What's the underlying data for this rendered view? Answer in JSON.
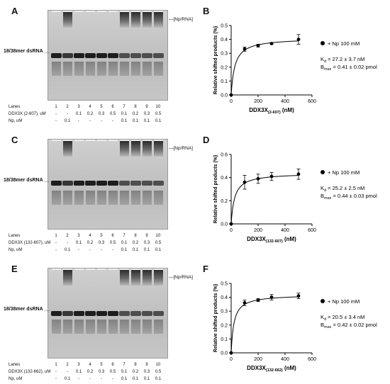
{
  "panels": [
    {
      "gel_letter": "A",
      "plot_letter": "B",
      "dsrna_label": "18/38mer dsRNA",
      "complex_label": "[Np/RNA]",
      "rows": [
        {
          "label": "Lanes",
          "values": [
            "1",
            "2",
            "3",
            "4",
            "5",
            "6",
            "7",
            "8",
            "9",
            "10"
          ]
        },
        {
          "label": "DDX3X (2-607), uM",
          "values": [
            "-",
            "-",
            "0.1",
            "0.2",
            "0.3",
            "0.5",
            "0.1",
            "0.2",
            "0.3",
            "0.5"
          ]
        },
        {
          "label": "Np, uM",
          "values": [
            "-",
            "0.1",
            "-",
            "-",
            "-",
            "-",
            "0.1",
            "0.1",
            "0.1",
            "0.1"
          ]
        }
      ],
      "legend": "+ Np 100 mM",
      "kd": "27.2 ± 3.7 nM",
      "bmax": "0.41 ± 0.02 pmol",
      "ylabel": "Relative shifted products (%)",
      "xlabel_main": "DDX3X",
      "xlabel_sub": "(2-607)",
      "xlabel_unit": " (nM)"
    },
    {
      "gel_letter": "C",
      "plot_letter": "D",
      "dsrna_label": "18/38mer dsRNA",
      "complex_label": "[Np/RNA]",
      "rows": [
        {
          "label": "Lanes",
          "values": [
            "1",
            "2",
            "3",
            "4",
            "5",
            "6",
            "7",
            "8",
            "9",
            "10"
          ]
        },
        {
          "label": "DDX3X (132-607), uM",
          "values": [
            "-",
            "-",
            "0.1",
            "0.2",
            "0.3",
            "0.5",
            "0.1",
            "0.2",
            "0.3",
            "0.5"
          ]
        },
        {
          "label": "Np, uM",
          "values": [
            "-",
            "0.1",
            "-",
            "-",
            "-",
            "-",
            "0.1",
            "0.1",
            "0.1",
            "0.1"
          ]
        }
      ],
      "legend": "+ Np 100 mM",
      "kd": "25.2 ± 2.5 nM",
      "bmax": "0.44 ± 0.03 pmol",
      "ylabel": "Relative shifted products (%)",
      "xlabel_main": "DDX3X",
      "xlabel_sub": "(132-607)",
      "xlabel_unit": " (nM)"
    },
    {
      "gel_letter": "E",
      "plot_letter": "F",
      "dsrna_label": "18/38mer dsRNA",
      "complex_label": "[Np/RNA]",
      "rows": [
        {
          "label": "Lanes",
          "values": [
            "1",
            "2",
            "3",
            "4",
            "5",
            "6",
            "7",
            "8",
            "9",
            "10"
          ]
        },
        {
          "label": "DDX3X (132-662), uM",
          "values": [
            "-",
            "-",
            "0.1",
            "0.2",
            "0.3",
            "0.5",
            "0.1",
            "0.2",
            "0.3",
            "0.5"
          ]
        },
        {
          "label": "Np, uM",
          "values": [
            "-",
            "0.1",
            "-",
            "-",
            "-",
            "-",
            "0.1",
            "0.1",
            "0.1",
            "0.1"
          ]
        }
      ],
      "legend": "+ Np 100 mM",
      "kd": "20.5 ± 3.4 nM",
      "bmax": "0.42 ± 0.02 pmol",
      "ylabel": "Relative shifted products (%)",
      "xlabel_main": "DDX3X",
      "xlabel_sub": "(132-662)",
      "xlabel_unit": " (nM)"
    }
  ],
  "kd_prefix": "K",
  "kd_sub": "d",
  "bmax_prefix": "B",
  "bmax_sub": "max",
  "chart_data": [
    {
      "type": "scatter",
      "x": [
        0,
        100,
        200,
        300,
        500
      ],
      "y": [
        0,
        0.33,
        0.355,
        0.37,
        0.4
      ],
      "yerr": [
        0,
        0.015,
        0.01,
        0.005,
        0.035
      ],
      "fit": {
        "model": "one-site binding",
        "Bmax": 0.41,
        "Kd": 27.2
      },
      "xlim": [
        0,
        600
      ],
      "ylim": [
        0,
        0.5
      ],
      "xticks": [
        0,
        200,
        400,
        600
      ],
      "yticks": [
        0.0,
        0.1,
        0.2,
        0.3,
        0.4,
        0.5
      ]
    },
    {
      "type": "scatter",
      "x": [
        0,
        100,
        200,
        300,
        500
      ],
      "y": [
        0,
        0.36,
        0.39,
        0.41,
        0.43
      ],
      "yerr": [
        0,
        0.06,
        0.04,
        0.035,
        0.045
      ],
      "fit": {
        "model": "one-site binding",
        "Bmax": 0.44,
        "Kd": 25.2
      },
      "xlim": [
        0,
        600
      ],
      "ylim": [
        0,
        0.6
      ],
      "xticks": [
        0,
        200,
        400,
        600
      ],
      "yticks": [
        0.0,
        0.2,
        0.4,
        0.6
      ]
    },
    {
      "type": "scatter",
      "x": [
        0,
        100,
        200,
        300,
        500
      ],
      "y": [
        0,
        0.36,
        0.38,
        0.4,
        0.41
      ],
      "yerr": [
        0,
        0.02,
        0.01,
        0.02,
        0.02
      ],
      "fit": {
        "model": "one-site binding",
        "Bmax": 0.42,
        "Kd": 20.5
      },
      "xlim": [
        0,
        600
      ],
      "ylim": [
        0,
        0.5
      ],
      "xticks": [
        0,
        200,
        400,
        600
      ],
      "yticks": [
        0.0,
        0.1,
        0.2,
        0.3,
        0.4,
        0.5
      ]
    }
  ]
}
